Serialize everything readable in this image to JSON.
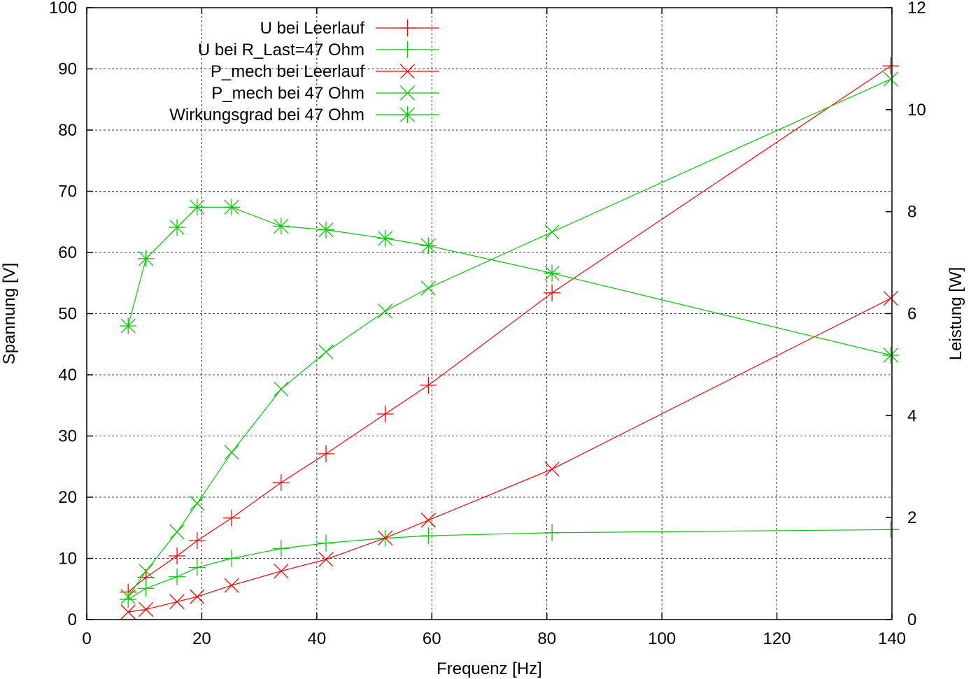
{
  "chart_data": {
    "type": "line",
    "title": "",
    "xlabel": "Frequenz [Hz]",
    "ylabel": "Spannung [V]",
    "y2label": "Leistung [W]",
    "xlim": [
      0,
      140
    ],
    "ylim": [
      0,
      100
    ],
    "y2lim": [
      0,
      12
    ],
    "x_ticks": [
      "0",
      "20",
      "40",
      "60",
      "80",
      "100",
      "120",
      "140"
    ],
    "y_ticks": [
      "0",
      "10",
      "20",
      "30",
      "40",
      "50",
      "60",
      "70",
      "80",
      "90",
      "100"
    ],
    "y2_ticks": [
      "0",
      "2",
      "4",
      "6",
      "8",
      "10",
      "12"
    ],
    "grid": true,
    "legend_position": "top-left",
    "series": [
      {
        "name": "U bei Leerlauf",
        "axis": "left",
        "color": "#ff0000",
        "marker": "plus",
        "x": [
          7.2,
          10.3,
          15.7,
          19.2,
          25.2,
          33.8,
          41.6,
          51.9,
          59.4,
          80.9,
          139.8
        ],
        "y": [
          4.5,
          6.9,
          10.4,
          12.9,
          16.6,
          22.4,
          27.1,
          33.6,
          38.3,
          53.4,
          90.5
        ]
      },
      {
        "name": "U bei R_Last=47 Ohm",
        "axis": "left",
        "color": "#00cc00",
        "marker": "plus",
        "x": [
          7.2,
          10.3,
          15.7,
          19.2,
          25.2,
          33.8,
          41.6,
          51.9,
          59.4,
          80.9,
          139.8
        ],
        "y": [
          3.3,
          5.1,
          7.0,
          8.5,
          10.0,
          11.6,
          12.5,
          13.3,
          13.7,
          14.2,
          14.7
        ]
      },
      {
        "name": "P_mech bei Leerlauf",
        "axis": "right",
        "color": "#ff0000",
        "marker": "cross",
        "x": [
          7.2,
          10.3,
          15.7,
          19.2,
          25.2,
          33.8,
          41.6,
          51.9,
          59.4,
          80.9,
          139.8
        ],
        "y": [
          0.15,
          0.2,
          0.35,
          0.45,
          0.67,
          0.95,
          1.18,
          1.6,
          1.95,
          2.95,
          6.3
        ]
      },
      {
        "name": "P_mech bei 47 Ohm",
        "axis": "right",
        "color": "#00cc00",
        "marker": "cross",
        "x": [
          7.2,
          10.3,
          15.7,
          19.2,
          25.2,
          33.8,
          41.6,
          51.9,
          59.4,
          80.9,
          139.8
        ],
        "y": [
          0.45,
          0.95,
          1.72,
          2.28,
          3.28,
          4.52,
          5.25,
          6.05,
          6.5,
          7.6,
          10.6
        ]
      },
      {
        "name": "Wirkungsgrad bei 47 Ohm",
        "axis": "left",
        "color": "#00cc00",
        "marker": "star",
        "x": [
          7.2,
          10.3,
          15.7,
          19.2,
          25.2,
          33.8,
          41.6,
          51.9,
          59.4,
          80.9,
          139.8
        ],
        "y": [
          48.0,
          59.0,
          64.1,
          67.4,
          67.4,
          64.3,
          63.7,
          62.3,
          61.1,
          56.6,
          43.2
        ]
      }
    ]
  }
}
